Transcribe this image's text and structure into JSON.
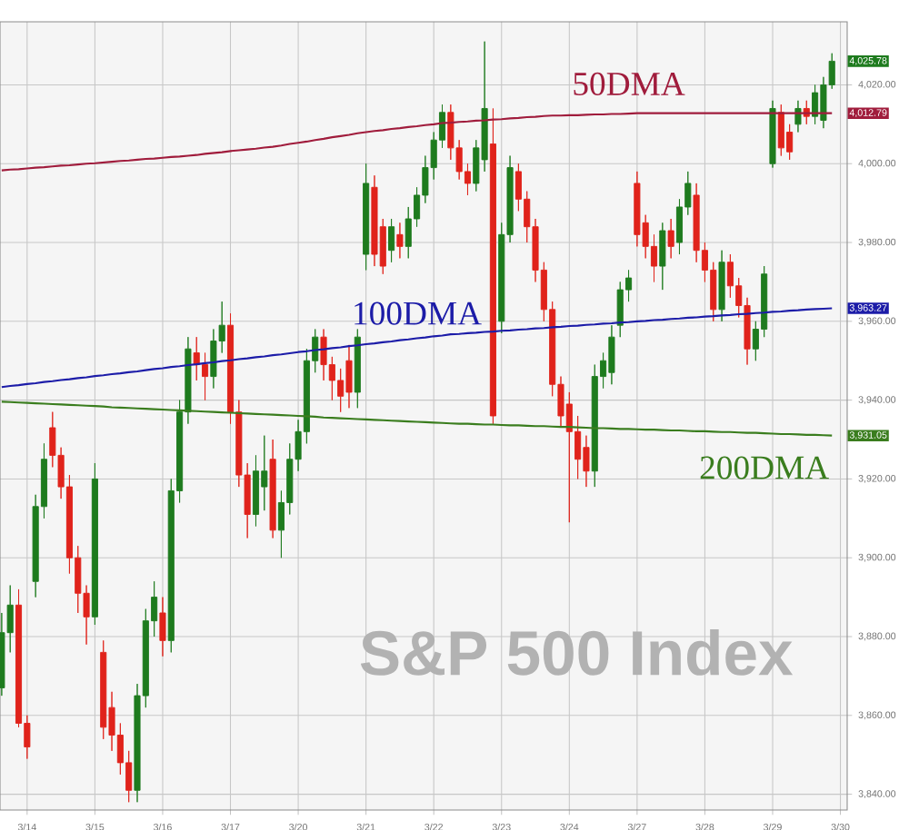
{
  "chart_data": {
    "type": "candlestick",
    "title": "S&P 500 Index",
    "categories": [
      null,
      null,
      null,
      "3/14",
      null,
      null,
      null,
      null,
      null,
      null,
      null,
      "3/15",
      null,
      null,
      null,
      null,
      null,
      null,
      null,
      "3/16",
      null,
      null,
      null,
      null,
      null,
      null,
      null,
      "3/17",
      null,
      null,
      null,
      null,
      null,
      null,
      null,
      "3/20",
      null,
      null,
      null,
      null,
      null,
      null,
      null,
      "3/21",
      null,
      null,
      null,
      null,
      null,
      null,
      null,
      "3/22",
      null,
      null,
      null,
      null,
      null,
      null,
      null,
      "3/23",
      null,
      null,
      null,
      null,
      null,
      null,
      null,
      "3/24",
      null,
      null,
      null,
      null,
      null,
      null,
      null,
      "3/27",
      null,
      null,
      null,
      null,
      null,
      null,
      null,
      "3/28",
      null,
      null,
      null,
      null,
      null,
      null,
      null,
      "3/29",
      null,
      null,
      null,
      null,
      null,
      null,
      null,
      "3/30"
    ],
    "ohlc": [
      [
        3867,
        3886,
        3865,
        3881
      ],
      [
        3881,
        3893,
        3876,
        3888
      ],
      [
        3888,
        3892,
        3857,
        3858
      ],
      [
        3858,
        3860,
        3849,
        3852
      ],
      [
        3894,
        3916,
        3890,
        3913
      ],
      [
        3913,
        3929,
        3910,
        3925
      ],
      [
        3933,
        3937,
        3923,
        3926
      ],
      [
        3926,
        3928,
        3915,
        3918
      ],
      [
        3918,
        3921,
        3896,
        3900
      ],
      [
        3900,
        3903,
        3886,
        3891
      ],
      [
        3891,
        3893,
        3878,
        3885
      ],
      [
        3885,
        3924,
        3883,
        3920
      ],
      [
        3876,
        3879,
        3854,
        3857
      ],
      [
        3862,
        3866,
        3851,
        3855
      ],
      [
        3855,
        3858,
        3845,
        3848
      ],
      [
        3848,
        3851,
        3838,
        3841
      ],
      [
        3841,
        3868,
        3838,
        3865
      ],
      [
        3865,
        3887,
        3862,
        3884
      ],
      [
        3884,
        3894,
        3880,
        3890
      ],
      [
        3886,
        3890,
        3875,
        3879
      ],
      [
        3879,
        3920,
        3876,
        3917
      ],
      [
        3917,
        3940,
        3914,
        3937
      ],
      [
        3937,
        3956,
        3934,
        3953
      ],
      [
        3952,
        3956,
        3945,
        3949
      ],
      [
        3949,
        3952,
        3940,
        3946
      ],
      [
        3946,
        3958,
        3943,
        3955
      ],
      [
        3955,
        3965,
        3952,
        3959
      ],
      [
        3959,
        3962,
        3934,
        3937
      ],
      [
        3937,
        3940,
        3918,
        3921
      ],
      [
        3921,
        3924,
        3905,
        3911
      ],
      [
        3911,
        3926,
        3908,
        3922
      ],
      [
        3918,
        3931,
        3912,
        3922
      ],
      [
        3925,
        3930,
        3905,
        3907
      ],
      [
        3907,
        3917,
        3900,
        3914
      ],
      [
        3914,
        3929,
        3911,
        3925
      ],
      [
        3925,
        3935,
        3922,
        3932
      ],
      [
        3932,
        3953,
        3929,
        3950
      ],
      [
        3950,
        3958,
        3947,
        3956
      ],
      [
        3956,
        3958,
        3945,
        3949
      ],
      [
        3949,
        3951,
        3940,
        3945
      ],
      [
        3945,
        3948,
        3937,
        3941
      ],
      [
        3950,
        3954,
        3938,
        3942
      ],
      [
        3942,
        3958,
        3938,
        3956
      ],
      [
        3977,
        4000,
        3973,
        3995
      ],
      [
        3994,
        3997,
        3974,
        3977
      ],
      [
        3984,
        3986,
        3972,
        3974
      ],
      [
        3978,
        3986,
        3975,
        3984
      ],
      [
        3982,
        3985,
        3976,
        3979
      ],
      [
        3979,
        3989,
        3976,
        3986
      ],
      [
        3986,
        3994,
        3984,
        3992
      ],
      [
        3992,
        4002,
        3990,
        3999
      ],
      [
        3999,
        4008,
        3996,
        4006
      ],
      [
        4006,
        4015,
        4004,
        4013
      ],
      [
        4013,
        4015,
        4001,
        4004
      ],
      [
        4004,
        4006,
        3996,
        3998
      ],
      [
        3998,
        4000,
        3992,
        3995
      ],
      [
        3995,
        4006,
        3993,
        4004
      ],
      [
        4001,
        4031,
        3998,
        4014
      ],
      [
        4005,
        4014,
        3934,
        3936
      ],
      [
        3960,
        3985,
        3957,
        3982
      ],
      [
        3982,
        4002,
        3980,
        3999
      ],
      [
        3998,
        4000,
        3988,
        3991
      ],
      [
        3991,
        3993,
        3980,
        3984
      ],
      [
        3984,
        3986,
        3970,
        3973
      ],
      [
        3973,
        3975,
        3960,
        3963
      ],
      [
        3963,
        3965,
        3941,
        3944
      ],
      [
        3944,
        3946,
        3933,
        3936
      ],
      [
        3939,
        3942,
        3909,
        3932
      ],
      [
        3932,
        3936,
        3920,
        3925
      ],
      [
        3928,
        3931,
        3918,
        3922
      ],
      [
        3922,
        3949,
        3918,
        3946
      ],
      [
        3946,
        3952,
        3943,
        3950
      ],
      [
        3947,
        3959,
        3944,
        3956
      ],
      [
        3959,
        3970,
        3956,
        3968
      ],
      [
        3968,
        3973,
        3965,
        3971
      ],
      [
        3995,
        3998,
        3979,
        3982
      ],
      [
        3985,
        3987,
        3976,
        3979
      ],
      [
        3979,
        3982,
        3970,
        3974
      ],
      [
        3974,
        3985,
        3968,
        3983
      ],
      [
        3983,
        3986,
        3976,
        3979
      ],
      [
        3980,
        3991,
        3977,
        3989
      ],
      [
        3989,
        3998,
        3987,
        3995
      ],
      [
        3992,
        3995,
        3975,
        3978
      ],
      [
        3978,
        3980,
        3970,
        3973
      ],
      [
        3973,
        3975,
        3960,
        3963
      ],
      [
        3963,
        3978,
        3960,
        3975
      ],
      [
        3975,
        3977,
        3966,
        3969
      ],
      [
        3969,
        3971,
        3961,
        3964
      ],
      [
        3964,
        3966,
        3949,
        3953
      ],
      [
        3953,
        3960,
        3950,
        3958
      ],
      [
        3958,
        3974,
        3956,
        3972
      ],
      [
        4000,
        4016,
        3999,
        4014
      ],
      [
        4013,
        4015,
        4002,
        4004
      ],
      [
        4008,
        4010,
        4001,
        4003
      ],
      [
        4010,
        4016,
        4008,
        4014
      ],
      [
        4014,
        4016,
        4010,
        4012
      ],
      [
        4012,
        4020,
        4010,
        4018
      ],
      [
        4011,
        4022,
        4009,
        4020
      ],
      [
        4020,
        4028,
        4019,
        4026
      ],
      null
    ],
    "series": [
      {
        "type": "line",
        "name": "50DMA",
        "color": "#a01c3c",
        "values": [
          3998.3,
          3998.5,
          3998.6,
          3998.8,
          3999.0,
          3999.1,
          3999.3,
          3999.5,
          3999.6,
          3999.8,
          4000.0,
          4000.1,
          4000.3,
          4000.5,
          4000.7,
          4000.8,
          4001.0,
          4001.2,
          4001.3,
          4001.5,
          4001.7,
          4001.8,
          4002.0,
          4002.2,
          4002.5,
          4002.7,
          4002.9,
          4003.2,
          4003.4,
          4003.6,
          4003.8,
          4004.1,
          4004.3,
          4004.6,
          4005.0,
          4005.3,
          4005.6,
          4006.0,
          4006.3,
          4006.7,
          4007.0,
          4007.3,
          4007.7,
          4008.0,
          4008.3,
          4008.5,
          4008.8,
          4009.0,
          4009.3,
          4009.5,
          4009.8,
          4010.0,
          4010.3,
          4010.4,
          4010.6,
          4010.7,
          4010.9,
          4011.0,
          4011.2,
          4011.3,
          4011.5,
          4011.6,
          4011.8,
          4011.9,
          4012.1,
          4012.2,
          4012.2,
          4012.3,
          4012.3,
          4012.4,
          4012.5,
          4012.5,
          4012.6,
          4012.6,
          4012.7,
          4012.8,
          4012.8,
          4012.8,
          4012.8,
          4012.8,
          4012.8,
          4012.8,
          4012.8,
          4012.8,
          4012.8,
          4012.8,
          4012.8,
          4012.8,
          4012.8,
          4012.8,
          4012.8,
          4012.8,
          4012.8,
          4012.8,
          4012.8,
          4012.8,
          4012.8,
          4012.8,
          4012.8,
          null
        ]
      },
      {
        "type": "line",
        "name": "100DMA",
        "color": "#1c1ca8",
        "values": [
          3943.3,
          3943.6,
          3943.8,
          3944.1,
          3944.3,
          3944.6,
          3944.8,
          3945.1,
          3945.3,
          3945.6,
          3945.8,
          3946.1,
          3946.3,
          3946.6,
          3946.8,
          3947.1,
          3947.3,
          3947.6,
          3947.9,
          3948.1,
          3948.4,
          3948.6,
          3948.9,
          3949.1,
          3949.4,
          3949.6,
          3949.9,
          3950.1,
          3950.4,
          3950.6,
          3950.9,
          3951.1,
          3951.4,
          3951.6,
          3951.9,
          3952.2,
          3952.4,
          3952.7,
          3952.9,
          3953.2,
          3953.4,
          3953.7,
          3953.9,
          3954.2,
          3954.4,
          3954.7,
          3954.9,
          3955.2,
          3955.4,
          3955.7,
          3955.9,
          3956.2,
          3956.4,
          3956.7,
          3956.8,
          3957.0,
          3957.1,
          3957.3,
          3957.4,
          3957.6,
          3957.7,
          3957.9,
          3958.0,
          3958.2,
          3958.3,
          3958.5,
          3958.6,
          3958.8,
          3958.9,
          3959.1,
          3959.2,
          3959.4,
          3959.5,
          3959.7,
          3959.8,
          3960.0,
          3960.1,
          3960.3,
          3960.4,
          3960.6,
          3960.7,
          3960.9,
          3961.0,
          3961.2,
          3961.3,
          3961.5,
          3961.6,
          3961.8,
          3961.9,
          3962.1,
          3962.2,
          3962.4,
          3962.5,
          3962.7,
          3962.8,
          3963.0,
          3963.1,
          3963.2,
          3963.3,
          null
        ]
      },
      {
        "type": "line",
        "name": "200DMA",
        "color": "#3a7d1e",
        "values": [
          3939.6,
          3939.5,
          3939.4,
          3939.3,
          3939.2,
          3939.1,
          3939.0,
          3938.9,
          3938.8,
          3938.7,
          3938.6,
          3938.5,
          3938.4,
          3938.2,
          3938.1,
          3938.0,
          3937.9,
          3937.8,
          3937.7,
          3937.6,
          3937.5,
          3937.4,
          3937.3,
          3937.2,
          3937.1,
          3937.0,
          3936.9,
          3936.8,
          3936.7,
          3936.6,
          3936.5,
          3936.4,
          3936.3,
          3936.2,
          3936.1,
          3936.0,
          3935.9,
          3935.8,
          3935.6,
          3935.5,
          3935.4,
          3935.3,
          3935.2,
          3935.1,
          3935.0,
          3934.9,
          3934.8,
          3934.7,
          3934.6,
          3934.5,
          3934.4,
          3934.3,
          3934.2,
          3934.1,
          3934.0,
          3934.0,
          3933.9,
          3933.8,
          3933.8,
          3933.7,
          3933.6,
          3933.6,
          3933.5,
          3933.4,
          3933.4,
          3933.3,
          3933.2,
          3933.2,
          3933.1,
          3933.0,
          3932.9,
          3932.9,
          3932.8,
          3932.7,
          3932.7,
          3932.6,
          3932.5,
          3932.5,
          3932.4,
          3932.3,
          3932.3,
          3932.2,
          3932.1,
          3932.1,
          3932.0,
          3931.9,
          3931.9,
          3931.8,
          3931.7,
          3931.7,
          3931.6,
          3931.5,
          3931.4,
          3931.4,
          3931.3,
          3931.2,
          3931.2,
          3931.1,
          3931.0,
          null
        ]
      }
    ],
    "ylim": [
      3836,
      4036
    ],
    "yticks": [
      {
        "value": 3840,
        "label": "3,840.00"
      },
      {
        "value": 3860,
        "label": "3,860.00"
      },
      {
        "value": 3880,
        "label": "3,880.00"
      },
      {
        "value": 3900,
        "label": "3,900.00"
      },
      {
        "value": 3920,
        "label": "3,920.00"
      },
      {
        "value": 3940,
        "label": "3,940.00"
      },
      {
        "value": 3960,
        "label": "3,960.00"
      },
      {
        "value": 3980,
        "label": "3,980.00"
      },
      {
        "value": 4000,
        "label": "4,000.00"
      },
      {
        "value": 4020,
        "label": "4,020.00"
      }
    ],
    "grid": true,
    "annotations": [
      "4,025.78",
      "4,012.79",
      "3,963.27",
      "3,931.05"
    ]
  }
}
